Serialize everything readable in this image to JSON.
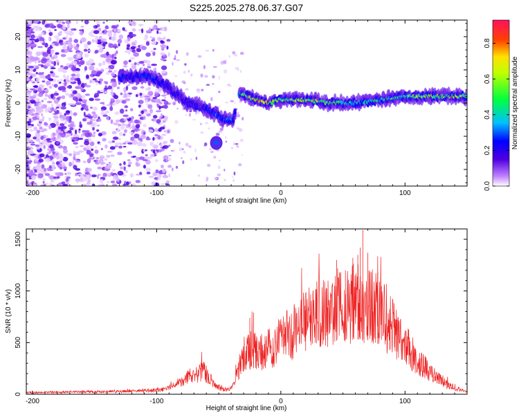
{
  "title": "S225.2025.278.06.37.G07",
  "chart_data": [
    {
      "type": "heatmap",
      "xlabel": "Height of straight line (km)",
      "ylabel": "Frequency (Hz)",
      "xlim": [
        -205,
        150
      ],
      "ylim": [
        -25,
        25
      ],
      "xticks": [
        -200,
        -100,
        0,
        100
      ],
      "xtick_labels": [
        "-200",
        "-100",
        "0",
        "100"
      ],
      "yticks": [
        -20,
        -10,
        0,
        10,
        20
      ],
      "ytick_labels": [
        "-20",
        "-10",
        "0",
        "10",
        "20"
      ],
      "colorbar": {
        "label": "Normalized spectral amplitude",
        "range": [
          0,
          0.93
        ],
        "ticks": [
          0.0,
          0.2,
          0.4,
          0.6,
          0.8
        ],
        "tick_labels": [
          "0.0",
          "0.2",
          "0.4",
          "0.6",
          "0.8"
        ]
      },
      "ridge": {
        "x": [
          -130,
          -120,
          -105,
          -95,
          -85,
          -75,
          -65,
          -55,
          -45,
          -38,
          -33,
          -20,
          -10,
          0,
          20,
          40,
          60,
          80,
          100,
          120,
          140,
          150
        ],
        "freq": [
          8,
          8,
          8,
          6,
          3,
          0,
          -1,
          -3,
          -5,
          -5,
          3,
          1,
          0,
          1,
          1,
          0,
          0,
          1,
          2,
          2,
          2,
          2
        ],
        "amplitude": [
          0.3,
          0.25,
          0.3,
          0.25,
          0.2,
          0.2,
          0.2,
          0.3,
          0.4,
          0.3,
          0.5,
          0.8,
          0.9,
          0.6,
          0.7,
          0.6,
          0.45,
          0.5,
          0.6,
          0.65,
          0.7,
          0.6
        ]
      },
      "secondary_blob": {
        "x": -52,
        "freq": -12,
        "amplitude": 0.3
      }
    },
    {
      "type": "line",
      "xlabel": "Height of straight line (km)",
      "ylabel": "SNR (10 * v/v)",
      "xlim": [
        -205,
        150
      ],
      "ylim": [
        0,
        1600
      ],
      "xticks": [
        -200,
        -100,
        0,
        100
      ],
      "xtick_labels": [
        "-200",
        "-100",
        "0",
        "100"
      ],
      "yticks": [
        0,
        500,
        1000,
        1500
      ],
      "ytick_labels": [
        "0",
        "500",
        "1000",
        "1500"
      ],
      "series": [
        {
          "name": "SNR",
          "color": "#ee2222",
          "x": [
            -205,
            -180,
            -150,
            -120,
            -100,
            -90,
            -80,
            -70,
            -62,
            -55,
            -48,
            -42,
            -38,
            -34,
            -30,
            -25,
            -22,
            -18,
            -10,
            0,
            10,
            20,
            30,
            40,
            50,
            60,
            65,
            70,
            80,
            90,
            100,
            110,
            120,
            130,
            140,
            150
          ],
          "y": [
            15,
            20,
            25,
            30,
            40,
            60,
            120,
            200,
            220,
            120,
            60,
            40,
            80,
            250,
            360,
            420,
            440,
            400,
            440,
            520,
            600,
            700,
            780,
            850,
            880,
            880,
            890,
            870,
            800,
            650,
            480,
            330,
            210,
            120,
            60,
            20
          ],
          "spike_x": [
            -25,
            -22,
            20,
            45,
            52,
            58,
            62,
            64,
            66,
            70,
            78
          ],
          "spike_y": [
            740,
            790,
            980,
            1300,
            1200,
            1320,
            1350,
            1420,
            1590,
            1370,
            1180
          ]
        }
      ]
    }
  ]
}
